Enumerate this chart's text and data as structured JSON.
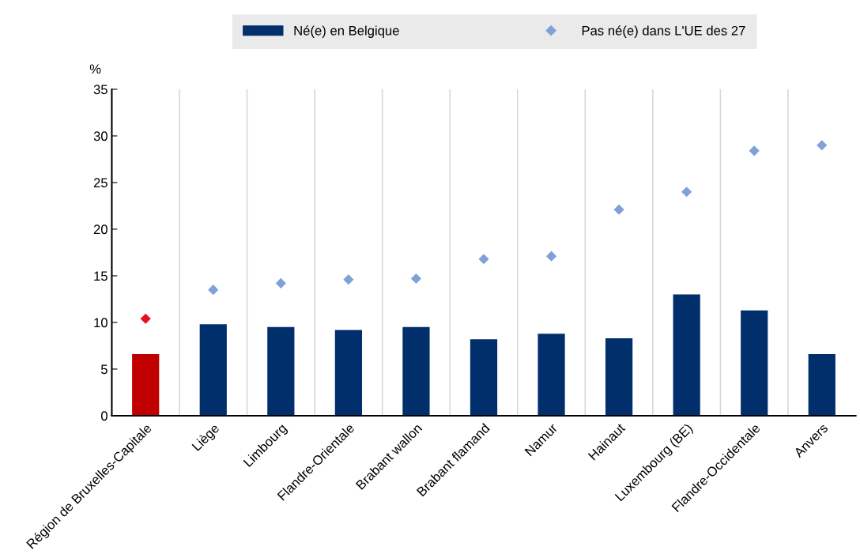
{
  "chart_data": {
    "type": "bar",
    "ylabel": "%",
    "categories": [
      "Région de Bruxelles-Capitale",
      "Liège",
      "Limbourg",
      "Flandre-Orientale",
      "Brabant wallon",
      "Brabant flamand",
      "Namur",
      "Hainaut",
      "Luxembourg (BE)",
      "Flandre-Occidentale",
      "Anvers"
    ],
    "series": [
      {
        "name": "Né(e) en Belgique",
        "color": "#002f6c",
        "colors": [
          "#c00000",
          "#002f6c",
          "#002f6c",
          "#002f6c",
          "#002f6c",
          "#002f6c",
          "#002f6c",
          "#002f6c",
          "#002f6c",
          "#002f6c",
          "#002f6c"
        ],
        "values": [
          6.6,
          9.8,
          9.5,
          9.2,
          9.5,
          8.2,
          8.8,
          8.3,
          13.0,
          11.3,
          6.6
        ]
      },
      {
        "name": "Pas né(e) dans L'UE des 27",
        "type": "scatter",
        "marker": "diamond",
        "color": "#7fa1d8",
        "colors": [
          "#e8101a",
          "#7fa1d8",
          "#7fa1d8",
          "#7fa1d8",
          "#7fa1d8",
          "#7fa1d8",
          "#7fa1d8",
          "#7fa1d8",
          "#7fa1d8",
          "#7fa1d8",
          "#7fa1d8"
        ],
        "values": [
          10.4,
          13.5,
          14.2,
          14.6,
          14.7,
          16.8,
          17.1,
          22.1,
          24.0,
          28.4,
          29.0
        ]
      }
    ],
    "ylim": [
      0,
      35
    ],
    "yticks": [
      0,
      5,
      10,
      15,
      20,
      25,
      30,
      35
    ],
    "grid": "x",
    "legend": "top"
  }
}
